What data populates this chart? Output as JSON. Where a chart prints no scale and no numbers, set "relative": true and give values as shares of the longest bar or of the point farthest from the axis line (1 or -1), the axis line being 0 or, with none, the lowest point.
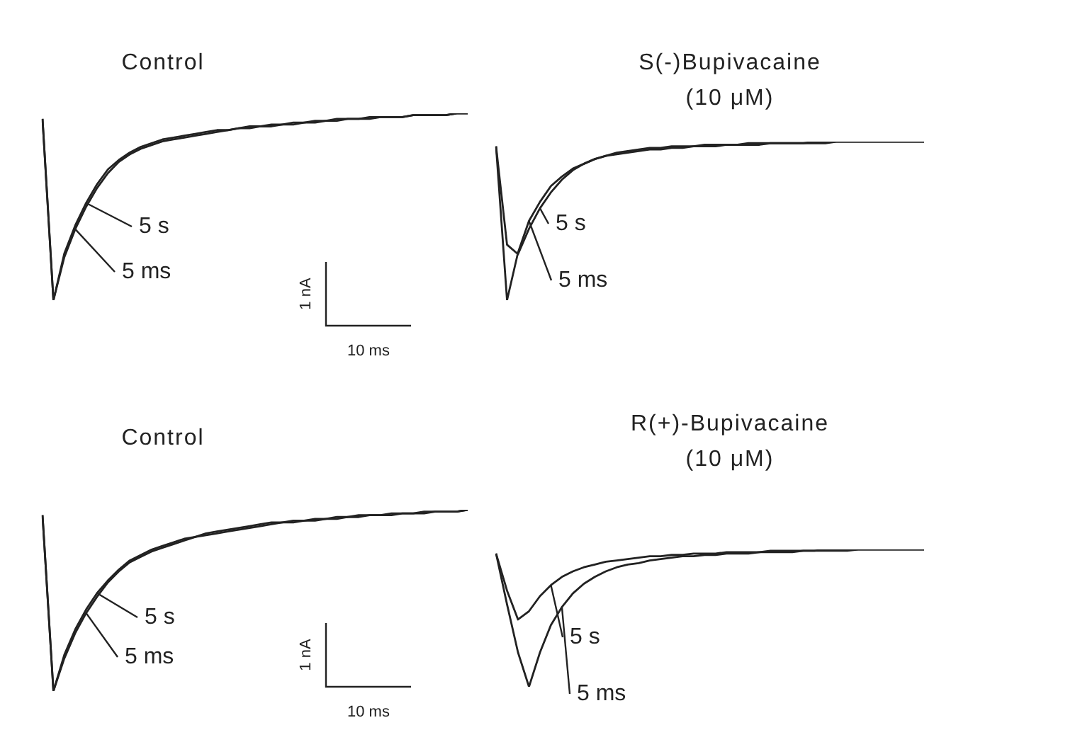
{
  "chart_data": [
    {
      "type": "line",
      "title": "Control",
      "relative": true,
      "marker": "none",
      "annotations": [
        "1 nA",
        "10 ms"
      ],
      "categories": [
        null,
        null,
        null,
        null,
        null,
        null,
        null,
        null,
        null,
        null,
        null,
        null,
        null,
        null,
        null,
        null,
        null,
        null,
        null,
        null,
        null,
        null,
        null,
        null,
        null,
        null,
        null,
        null,
        null,
        null,
        null,
        null,
        null,
        null,
        null,
        null,
        null,
        null,
        null,
        null
      ],
      "series": [
        {
          "name": "5 s",
          "color": "#222222",
          "values": [
            0.97,
            0,
            0.25,
            0.4,
            0.52,
            0.62,
            0.7,
            0.75,
            0.79,
            0.82,
            0.84,
            0.86,
            0.87,
            0.88,
            0.89,
            0.9,
            0.91,
            0.91,
            0.92,
            0.93,
            0.93,
            0.94,
            0.94,
            0.95,
            0.95,
            0.96,
            0.96,
            0.97,
            0.97,
            0.97,
            0.98,
            0.98,
            0.98,
            0.98,
            0.99,
            0.99,
            0.99,
            0.99,
            1,
            1
          ]
        },
        {
          "name": "5 ms",
          "color": "#222222",
          "values": [
            0.97,
            0,
            0.23,
            0.38,
            0.5,
            0.6,
            0.68,
            0.74,
            0.78,
            0.81,
            0.83,
            0.85,
            0.86,
            0.87,
            0.88,
            0.89,
            0.9,
            0.91,
            0.92,
            0.92,
            0.93,
            0.93,
            0.94,
            0.94,
            0.95,
            0.95,
            0.96,
            0.96,
            0.97,
            0.97,
            0.97,
            0.98,
            0.98,
            0.98,
            0.99,
            0.99,
            0.99,
            0.99,
            1,
            1
          ]
        }
      ]
    },
    {
      "type": "line",
      "title": "S(-)Bupivacaine (10 μM)",
      "relative": true,
      "marker": "none",
      "categories": [
        null,
        null,
        null,
        null,
        null,
        null,
        null,
        null,
        null,
        null,
        null,
        null,
        null,
        null,
        null,
        null,
        null,
        null,
        null,
        null,
        null,
        null,
        null,
        null,
        null,
        null,
        null,
        null,
        null,
        null,
        null,
        null,
        null,
        null,
        null,
        null,
        null,
        null,
        null,
        null
      ],
      "series": [
        {
          "name": "5 s",
          "color": "#222222",
          "values": [
            0.97,
            0.35,
            0.29,
            0.45,
            0.58,
            0.68,
            0.76,
            0.82,
            0.86,
            0.89,
            0.91,
            0.93,
            0.94,
            0.95,
            0.96,
            0.96,
            0.97,
            0.97,
            0.97,
            0.98,
            0.98,
            0.98,
            0.98,
            0.99,
            0.99,
            0.99,
            0.99,
            0.99,
            0.99,
            1,
            1,
            1,
            1,
            1,
            1,
            1,
            1,
            1,
            1,
            1
          ]
        },
        {
          "name": "5 ms",
          "color": "#222222",
          "values": [
            0.97,
            0,
            0.3,
            0.5,
            0.62,
            0.72,
            0.78,
            0.83,
            0.86,
            0.89,
            0.91,
            0.92,
            0.93,
            0.94,
            0.95,
            0.95,
            0.96,
            0.96,
            0.97,
            0.97,
            0.97,
            0.98,
            0.98,
            0.98,
            0.98,
            0.99,
            0.99,
            0.99,
            0.99,
            0.99,
            0.99,
            1,
            1,
            1,
            1,
            1,
            1,
            1,
            1,
            1
          ]
        }
      ]
    },
    {
      "type": "line",
      "title": "Control",
      "relative": true,
      "marker": "none",
      "annotations": [
        "1 nA",
        "10 ms"
      ],
      "categories": [
        null,
        null,
        null,
        null,
        null,
        null,
        null,
        null,
        null,
        null,
        null,
        null,
        null,
        null,
        null,
        null,
        null,
        null,
        null,
        null,
        null,
        null,
        null,
        null,
        null,
        null,
        null,
        null,
        null,
        null,
        null,
        null,
        null,
        null,
        null,
        null,
        null,
        null,
        null,
        null
      ],
      "series": [
        {
          "name": "5 s",
          "color": "#222222",
          "values": [
            0.97,
            0,
            0.2,
            0.34,
            0.45,
            0.54,
            0.61,
            0.67,
            0.72,
            0.75,
            0.78,
            0.8,
            0.82,
            0.84,
            0.85,
            0.87,
            0.88,
            0.89,
            0.9,
            0.91,
            0.92,
            0.93,
            0.93,
            0.94,
            0.94,
            0.95,
            0.95,
            0.96,
            0.96,
            0.97,
            0.97,
            0.97,
            0.98,
            0.98,
            0.98,
            0.99,
            0.99,
            0.99,
            0.99,
            1
          ]
        },
        {
          "name": "5 ms",
          "color": "#222222",
          "values": [
            0.97,
            0,
            0.18,
            0.32,
            0.43,
            0.52,
            0.6,
            0.66,
            0.71,
            0.74,
            0.77,
            0.79,
            0.81,
            0.83,
            0.85,
            0.86,
            0.87,
            0.88,
            0.89,
            0.9,
            0.91,
            0.92,
            0.93,
            0.93,
            0.94,
            0.94,
            0.95,
            0.95,
            0.96,
            0.96,
            0.97,
            0.97,
            0.97,
            0.98,
            0.98,
            0.98,
            0.99,
            0.99,
            0.99,
            1
          ]
        }
      ]
    },
    {
      "type": "line",
      "title": "R(+)-Bupivacaine (10 μM)",
      "relative": true,
      "marker": "none",
      "categories": [
        null,
        null,
        null,
        null,
        null,
        null,
        null,
        null,
        null,
        null,
        null,
        null,
        null,
        null,
        null,
        null,
        null,
        null,
        null,
        null,
        null,
        null,
        null,
        null,
        null,
        null,
        null,
        null,
        null,
        null,
        null,
        null,
        null,
        null,
        null,
        null,
        null,
        null,
        null,
        null
      ],
      "series": [
        {
          "name": "5 s",
          "color": "#222222",
          "values": [
            0.97,
            0.7,
            0.49,
            0.55,
            0.66,
            0.74,
            0.8,
            0.84,
            0.87,
            0.89,
            0.91,
            0.92,
            0.93,
            0.94,
            0.95,
            0.95,
            0.96,
            0.96,
            0.97,
            0.97,
            0.97,
            0.98,
            0.98,
            0.98,
            0.98,
            0.99,
            0.99,
            0.99,
            0.99,
            0.99,
            1,
            1,
            1,
            1,
            1,
            1,
            1,
            1,
            1,
            1
          ]
        },
        {
          "name": "5 ms",
          "color": "#222222",
          "values": [
            0.97,
            0.6,
            0.25,
            0,
            0.25,
            0.45,
            0.58,
            0.68,
            0.75,
            0.8,
            0.84,
            0.87,
            0.89,
            0.9,
            0.92,
            0.93,
            0.94,
            0.95,
            0.95,
            0.96,
            0.96,
            0.97,
            0.97,
            0.97,
            0.98,
            0.98,
            0.98,
            0.98,
            0.99,
            0.99,
            0.99,
            0.99,
            0.99,
            1,
            1,
            1,
            1,
            1,
            1,
            1
          ]
        }
      ]
    }
  ]
}
